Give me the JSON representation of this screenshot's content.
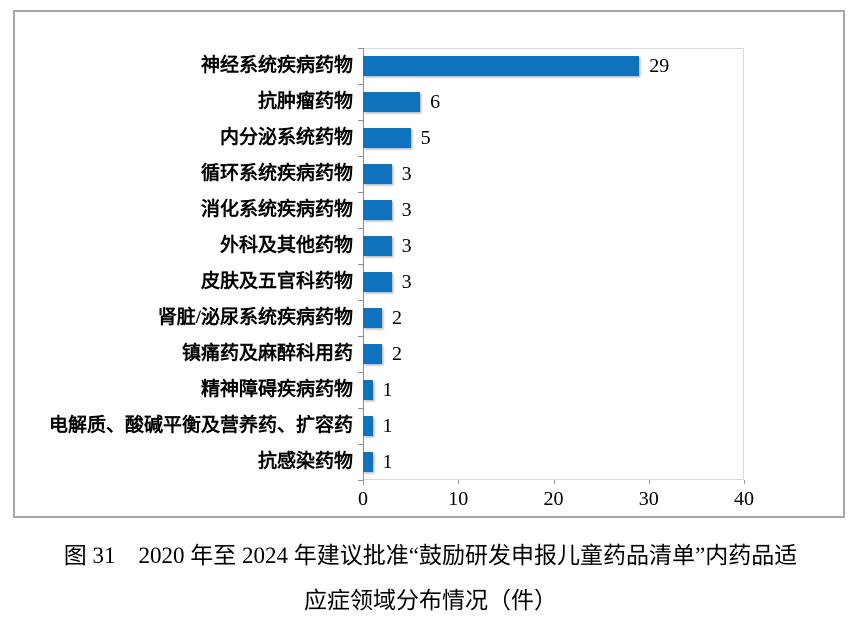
{
  "chart_data": {
    "type": "bar",
    "orientation": "horizontal",
    "title": "",
    "xlabel": "",
    "ylabel": "",
    "categories": [
      "神经系统疾病药物",
      "抗肿瘤药物",
      "内分泌系统药物",
      "循环系统疾病药物",
      "消化系统疾病药物",
      "外科及其他药物",
      "皮肤及五官科药物",
      "肾脏/泌尿系统疾病药物",
      "镇痛药及麻醉科用药",
      "精神障碍疾病药物",
      "电解质、酸碱平衡及营养药、扩容药",
      "抗感染药物"
    ],
    "values": [
      29,
      6,
      5,
      3,
      3,
      3,
      3,
      2,
      2,
      1,
      1,
      1
    ],
    "x_ticks": [
      0,
      10,
      20,
      30,
      40
    ],
    "xlim": [
      0,
      40
    ],
    "grid": false,
    "legend": false,
    "data_labels": true,
    "bar_color": "#0f72bc",
    "axis_color": "#8c8c8c",
    "plot_border_color": "#d9d9d9",
    "outer_border_color": "#a6a6a6"
  },
  "caption": {
    "line1": "图 31　2020 年至 2024 年建议批准“鼓励研发申报儿童药品清单”内药品适",
    "line2": "应症领域分布情况（件）"
  }
}
